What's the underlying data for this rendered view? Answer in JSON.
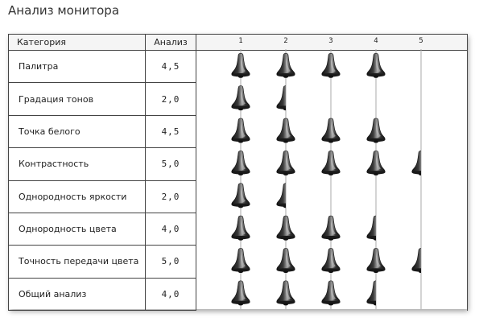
{
  "title": "Анализ монитора",
  "headers": {
    "category": "Категория",
    "score": "Анализ"
  },
  "chart_data": {
    "type": "bar",
    "categories": [
      "Палитра",
      "Градация тонов",
      "Точка белого",
      "Контрастность",
      "Однородность яркости",
      "Однородность цвета",
      "Точность передачи цвета",
      "Общий анализ"
    ],
    "values": [
      4.5,
      2.0,
      4.5,
      5.0,
      2.0,
      4.0,
      5.0,
      4.0
    ],
    "value_labels": [
      "4,5",
      "2,0",
      "4,5",
      "5,0",
      "2,0",
      "4,0",
      "5,0",
      "4,0"
    ],
    "x_ticks": [
      "1",
      "2",
      "3",
      "4",
      "5"
    ],
    "xlim": [
      0,
      5
    ],
    "grid": true,
    "marker": "bell-icon",
    "colors": {
      "marker_dark": "#111111",
      "marker_light": "#9a9a9a",
      "grid": "#aaaaaa"
    }
  }
}
